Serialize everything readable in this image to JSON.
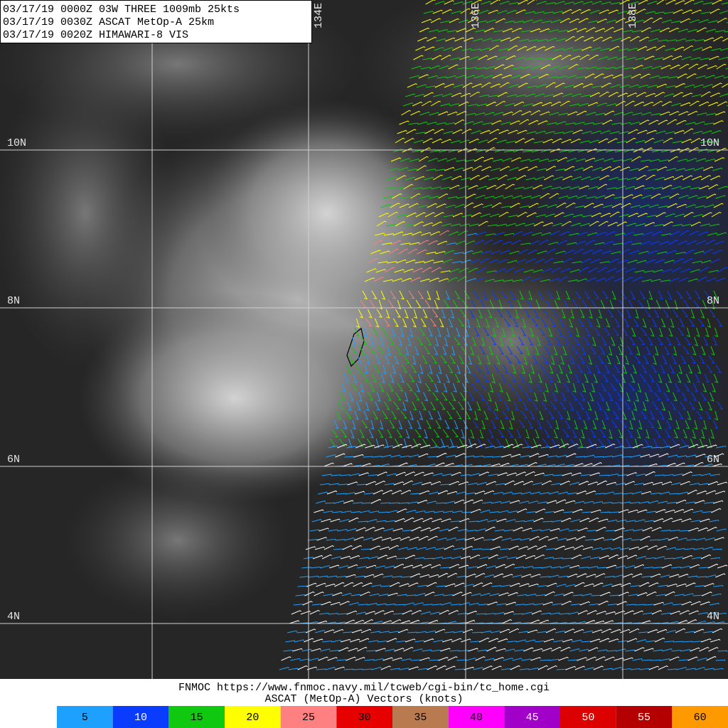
{
  "header": {
    "lines": [
      "03/17/19 0000Z  03W THREE 1009mb 25kts",
      "03/17/19 0030Z  ASCAT MetOp-A 25km",
      "03/17/19 0020Z  HIMAWARI-8 VIS"
    ]
  },
  "grid": {
    "longitude_labels": [
      "134E",
      "136E",
      "138E"
    ],
    "latitude_labels": [
      "10N",
      "8N",
      "6N",
      "4N"
    ]
  },
  "footer": {
    "source": "FNMOC https://www.fnmoc.navy.mil/tcweb/cgi-bin/tc_home.cgi",
    "legend_title": "ASCAT (MetOp-A) Vectors (knots)"
  },
  "legend": [
    {
      "value": 5,
      "color": "#1ea0ff"
    },
    {
      "value": 10,
      "color": "#0a3cff"
    },
    {
      "value": 15,
      "color": "#10c810"
    },
    {
      "value": 20,
      "color": "#ffff00"
    },
    {
      "value": 25,
      "color": "#ff8080"
    },
    {
      "value": 30,
      "color": "#e60000"
    },
    {
      "value": 35,
      "color": "#b97a50"
    },
    {
      "value": 40,
      "color": "#ff00ff"
    },
    {
      "value": 45,
      "color": "#a000c8"
    },
    {
      "value": 50,
      "color": "#dc0000"
    },
    {
      "value": 55,
      "color": "#b40000"
    },
    {
      "value": 60,
      "color": "#ff9900"
    }
  ]
}
